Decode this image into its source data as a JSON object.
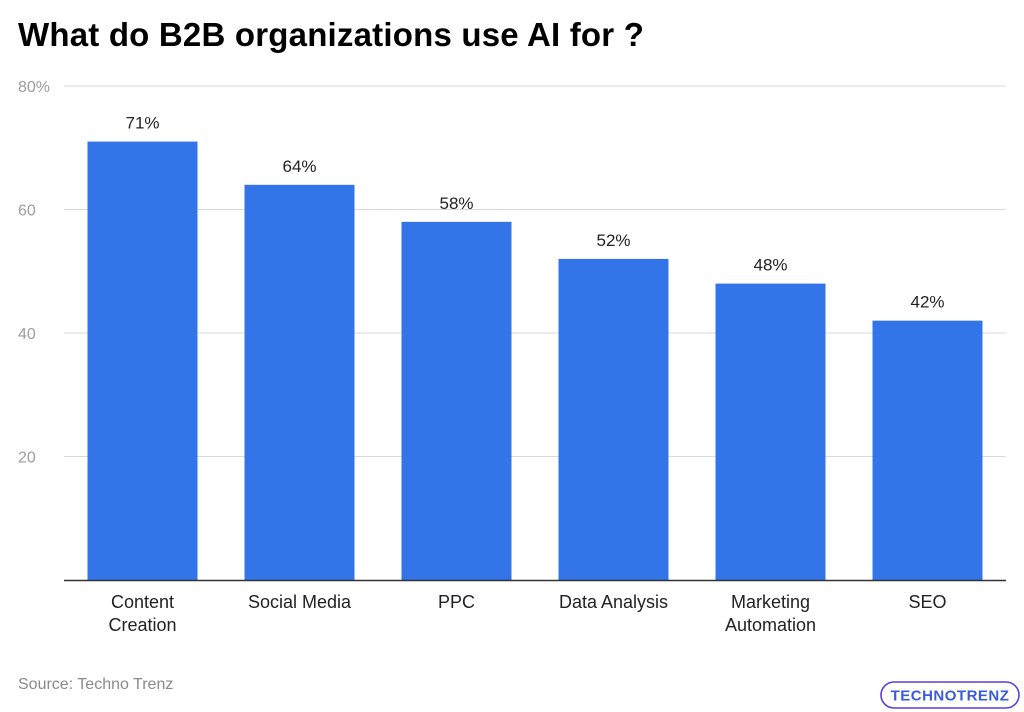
{
  "title": "What do B2B organizations use AI for ?",
  "source": "Source: Techno Trenz",
  "logo_text": "TECHNOTRENZ",
  "colors": {
    "bar": "#3374e8",
    "grid": "#d9d9d9",
    "axis": "#333333",
    "tick_label": "#9e9e9e",
    "value_label": "#222222",
    "category_label": "#222222",
    "logo_border": "#5b3fd6"
  },
  "chart_data": {
    "type": "bar",
    "title": "What do B2B organizations use AI for ?",
    "xlabel": "",
    "ylabel": "",
    "ylim": [
      0,
      80
    ],
    "yticks": [
      20,
      40,
      60,
      80
    ],
    "ytick_labels": [
      "20",
      "40",
      "60",
      "80%"
    ],
    "grid": true,
    "categories": [
      [
        "Content",
        "Creation"
      ],
      [
        "Social Media"
      ],
      [
        "PPC"
      ],
      [
        "Data Analysis"
      ],
      [
        "Marketing",
        "Automation"
      ],
      [
        "SEO"
      ]
    ],
    "values": [
      71,
      64,
      58,
      52,
      48,
      42
    ],
    "value_labels": [
      "71%",
      "64%",
      "58%",
      "52%",
      "48%",
      "42%"
    ]
  }
}
